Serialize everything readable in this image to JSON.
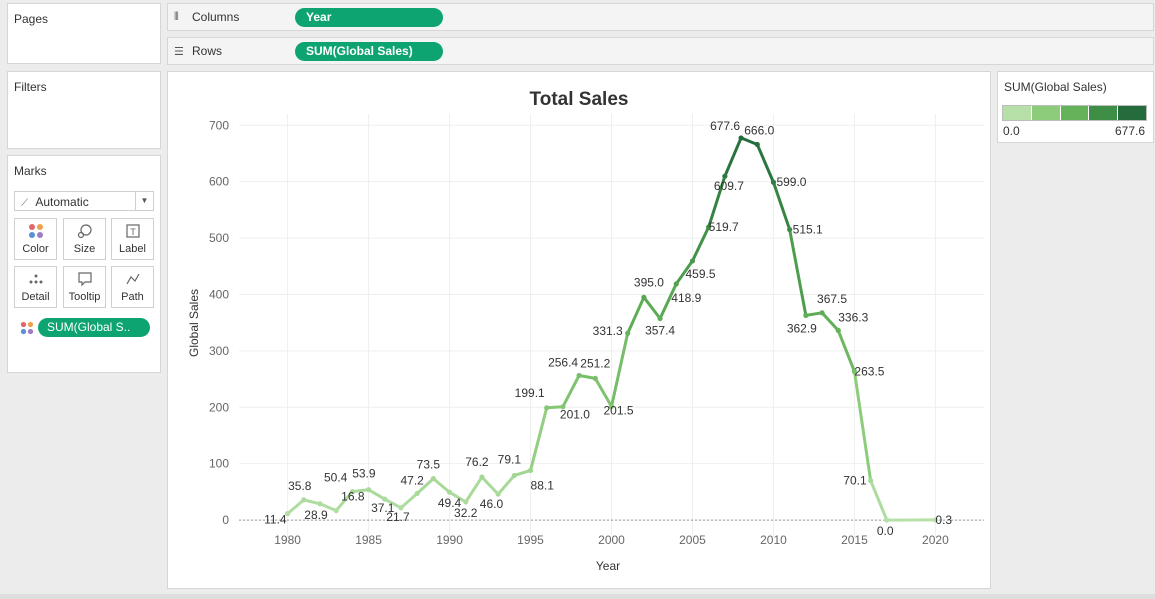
{
  "pages": {
    "title": "Pages"
  },
  "filters": {
    "title": "Filters"
  },
  "marks": {
    "title": "Marks",
    "type_label": "Automatic",
    "buttons": [
      {
        "label": "Color",
        "icon": "color-dots-icon"
      },
      {
        "label": "Size",
        "icon": "size-icon"
      },
      {
        "label": "Label",
        "icon": "label-icon"
      },
      {
        "label": "Detail",
        "icon": "detail-icon"
      },
      {
        "label": "Tooltip",
        "icon": "tooltip-icon"
      },
      {
        "label": "Path",
        "icon": "path-icon"
      }
    ],
    "field_pill": "SUM(Global S.."
  },
  "shelves": {
    "columns": {
      "label": "Columns",
      "pill": "Year"
    },
    "rows": {
      "label": "Rows",
      "pill": "SUM(Global Sales)"
    }
  },
  "legend": {
    "title": "SUM(Global Sales)",
    "min_label": "0.0",
    "max_label": "677.6",
    "colors": [
      "#b6e0a8",
      "#8ccc7a",
      "#64b25a",
      "#3e8e46",
      "#246c3c"
    ]
  },
  "colors": {
    "accent": "#0ea471"
  },
  "chart_data": {
    "type": "line",
    "title": "Total Sales",
    "xlabel": "Year",
    "ylabel": "Global Sales",
    "xlim": [
      1977,
      2023
    ],
    "ylim": [
      -30,
      720
    ],
    "xticks": [
      "1980",
      "1985",
      "1990",
      "1995",
      "2000",
      "2005",
      "2010",
      "2015",
      "2020"
    ],
    "yticks": [
      "0",
      "100",
      "200",
      "300",
      "400",
      "500",
      "600",
      "700"
    ],
    "grid": true,
    "x": [
      1980,
      1981,
      1982,
      1983,
      1984,
      1985,
      1986,
      1987,
      1988,
      1989,
      1990,
      1991,
      1992,
      1993,
      1994,
      1995,
      1996,
      1997,
      1998,
      1999,
      2000,
      2001,
      2002,
      2003,
      2004,
      2005,
      2006,
      2007,
      2008,
      2009,
      2010,
      2011,
      2012,
      2013,
      2014,
      2015,
      2016,
      2017,
      2020
    ],
    "values": [
      11.4,
      35.8,
      28.9,
      16.8,
      50.4,
      53.9,
      37.1,
      21.7,
      47.2,
      73.5,
      49.4,
      32.2,
      76.2,
      46.0,
      79.1,
      88.1,
      199.1,
      201.0,
      256.4,
      251.2,
      201.5,
      331.3,
      395.0,
      357.4,
      418.9,
      459.5,
      519.7,
      609.7,
      677.6,
      666.0,
      599.0,
      515.1,
      362.9,
      367.5,
      336.3,
      263.5,
      70.1,
      0.0,
      0.3
    ],
    "labels": [
      "11.4",
      "35.8",
      "28.9",
      "16.8",
      "50.4",
      "53.9",
      "37.1",
      "21.7",
      "47.2",
      "73.5",
      "49.4",
      "32.2",
      "76.2",
      "46.0",
      "79.1",
      "88.1",
      "199.1",
      "201.0",
      "256.4",
      "251.2",
      "201.5",
      "331.3",
      "395.0",
      "357.4",
      "418.9",
      "459.5",
      "519.7",
      "609.7",
      "677.6",
      "666.0",
      "599.0",
      "515.1",
      "362.9",
      "367.5",
      "336.3",
      "263.5",
      "70.1",
      "0.0",
      "0.3"
    ]
  }
}
